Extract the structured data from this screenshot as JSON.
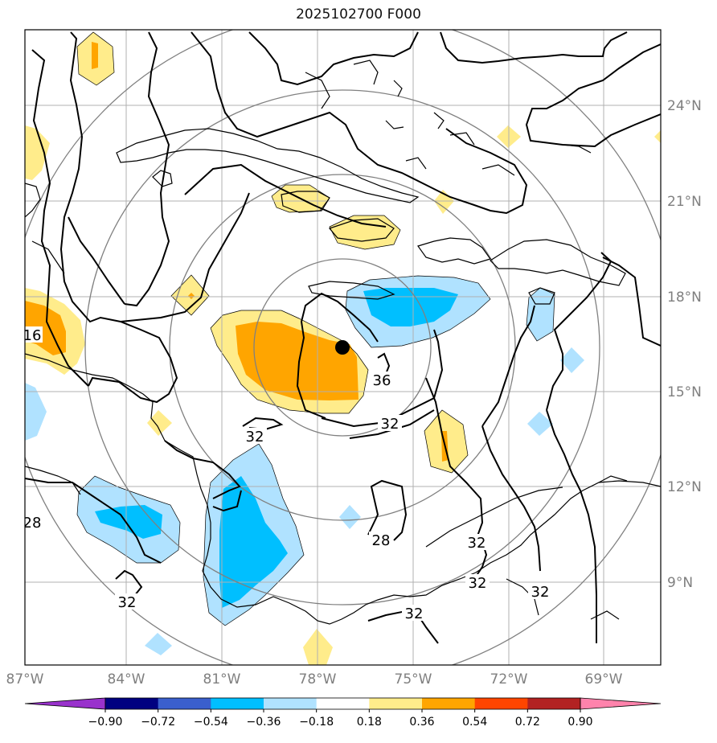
{
  "title": "2025102700 F000",
  "lon_ticks": [
    "87°W",
    "84°W",
    "81°W",
    "78°W",
    "75°W",
    "72°W",
    "69°W"
  ],
  "lat_ticks": [
    "24°N",
    "21°N",
    "18°N",
    "15°N",
    "12°N",
    "9°N"
  ],
  "contour_labels": [
    "16",
    "36",
    "32",
    "32",
    "28",
    "28",
    "32",
    "32",
    "32",
    "32",
    "32"
  ],
  "colorbar": {
    "labels": [
      "−0.90",
      "−0.72",
      "−0.54",
      "−0.36",
      "−0.18",
      "0.18",
      "0.36",
      "0.54",
      "0.72",
      "0.90"
    ],
    "colors": [
      "#9932cc",
      "#000080",
      "#3a5fcd",
      "#00bfff",
      "#b0e2ff",
      "#ffffff",
      "#ffec8b",
      "#ffa500",
      "#ff4500",
      "#b22222",
      "#ff83ac"
    ]
  },
  "colors": {
    "positive_light": "#ffec8b",
    "positive_mid": "#ffa500",
    "negative_light": "#b0e2ff",
    "negative_mid": "#00bfff",
    "storm_center": "#000000"
  }
}
